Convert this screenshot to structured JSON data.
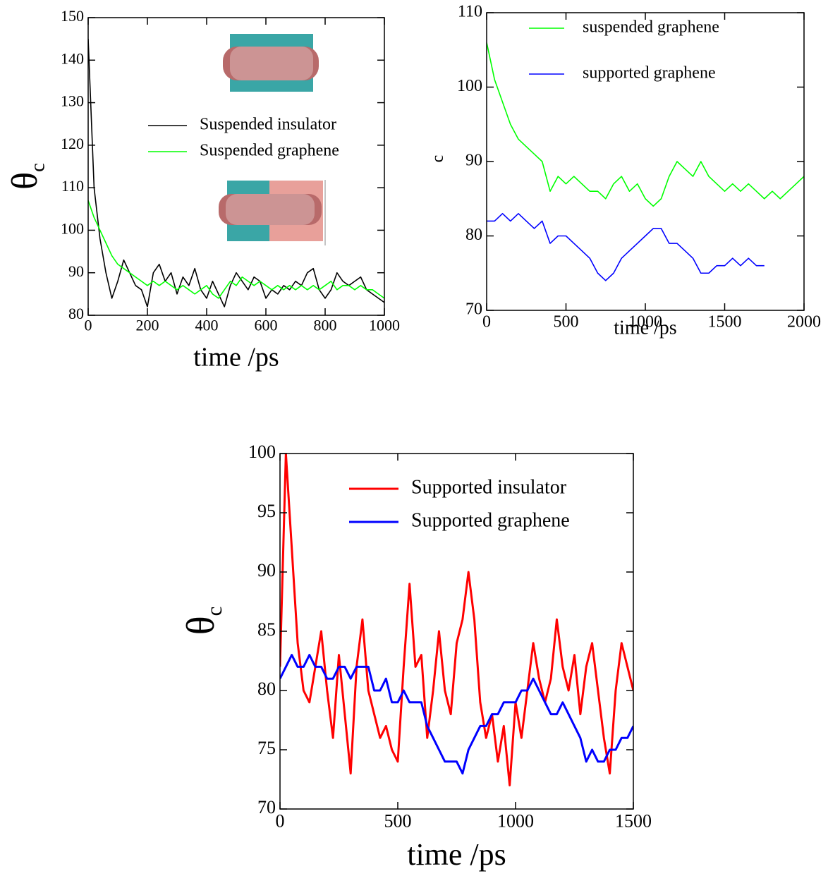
{
  "chart_data": [
    {
      "type": "line",
      "xlabel": "time /ps",
      "ylabel": "θ",
      "ylabel_subscript": "c",
      "xlim": [
        0,
        1000
      ],
      "ylim": [
        80,
        150
      ],
      "xticks": [
        0,
        200,
        400,
        600,
        800,
        1000
      ],
      "yticks": [
        80,
        90,
        100,
        110,
        120,
        130,
        140,
        150
      ],
      "x": [
        0,
        20,
        40,
        60,
        80,
        100,
        120,
        140,
        160,
        180,
        200,
        220,
        240,
        260,
        280,
        300,
        320,
        340,
        360,
        380,
        400,
        420,
        440,
        460,
        480,
        500,
        520,
        540,
        560,
        580,
        600,
        620,
        640,
        660,
        680,
        700,
        720,
        740,
        760,
        780,
        800,
        820,
        840,
        860,
        880,
        900,
        920,
        940,
        960,
        980,
        1000
      ],
      "series": [
        {
          "name": "Suspended insulator",
          "color": "#000000",
          "values": [
            145,
            110,
            98,
            90,
            84,
            88,
            93,
            90,
            87,
            86,
            82,
            90,
            92,
            88,
            90,
            85,
            89,
            87,
            91,
            86,
            84,
            88,
            85,
            82,
            87,
            90,
            88,
            86,
            89,
            88,
            84,
            86,
            85,
            87,
            86,
            88,
            87,
            90,
            91,
            86,
            84,
            86,
            90,
            88,
            87,
            88,
            89,
            86,
            85,
            84,
            83
          ]
        },
        {
          "name": "Suspended graphene",
          "color": "#00ff00",
          "values": [
            107,
            103,
            100,
            97,
            94,
            92,
            91,
            90,
            89,
            88,
            87,
            88,
            87,
            88,
            87,
            86,
            87,
            86,
            85,
            86,
            87,
            85,
            84,
            86,
            88,
            87,
            89,
            88,
            87,
            88,
            87,
            86,
            87,
            86,
            87,
            86,
            87,
            86,
            87,
            86,
            87,
            88,
            86,
            87,
            87,
            86,
            87,
            86,
            86,
            85,
            84
          ]
        }
      ]
    },
    {
      "type": "line",
      "xlabel": "time /ps",
      "ylabel_subscript": "c",
      "xlim": [
        0,
        2000
      ],
      "ylim": [
        70,
        110
      ],
      "xticks": [
        0,
        500,
        1000,
        1500,
        2000
      ],
      "yticks": [
        70,
        80,
        90,
        100,
        110
      ],
      "x": [
        0,
        50,
        100,
        150,
        200,
        250,
        300,
        350,
        400,
        450,
        500,
        550,
        600,
        650,
        700,
        750,
        800,
        850,
        900,
        950,
        1000,
        1050,
        1100,
        1150,
        1200,
        1250,
        1300,
        1350,
        1400,
        1450,
        1500,
        1550,
        1600,
        1650,
        1700,
        1750,
        1800,
        1850,
        1900,
        1950,
        2000
      ],
      "series": [
        {
          "name": "suspended graphene",
          "color": "#00ff00",
          "values": [
            106,
            101,
            98,
            95,
            93,
            92,
            91,
            90,
            86,
            88,
            87,
            88,
            87,
            86,
            86,
            85,
            87,
            88,
            86,
            87,
            85,
            84,
            85,
            88,
            90,
            89,
            88,
            90,
            88,
            87,
            86,
            87,
            86,
            87,
            86,
            85,
            86,
            85,
            86,
            87,
            88
          ]
        },
        {
          "name": "supported graphene",
          "color": "#0000ff",
          "values": [
            82,
            82,
            83,
            82,
            83,
            82,
            81,
            82,
            79,
            80,
            80,
            79,
            78,
            77,
            75,
            74,
            75,
            77,
            78,
            79,
            80,
            81,
            81,
            79,
            79,
            78,
            77,
            75,
            75,
            76,
            76,
            77,
            76,
            77,
            76,
            76,
            null,
            null,
            null,
            null,
            null
          ]
        }
      ]
    },
    {
      "type": "line",
      "xlabel": "time /ps",
      "ylabel": "θ",
      "ylabel_subscript": "c",
      "xlim": [
        0,
        1500
      ],
      "ylim": [
        70,
        100
      ],
      "xticks": [
        0,
        500,
        1000,
        1500
      ],
      "yticks": [
        70,
        75,
        80,
        85,
        90,
        95,
        100
      ],
      "x": [
        0,
        25,
        50,
        75,
        100,
        125,
        150,
        175,
        200,
        225,
        250,
        275,
        300,
        325,
        350,
        375,
        400,
        425,
        450,
        475,
        500,
        525,
        550,
        575,
        600,
        625,
        650,
        675,
        700,
        725,
        750,
        775,
        800,
        825,
        850,
        875,
        900,
        925,
        950,
        975,
        1000,
        1025,
        1050,
        1075,
        1100,
        1125,
        1150,
        1175,
        1200,
        1225,
        1250,
        1275,
        1300,
        1325,
        1350,
        1375,
        1400,
        1425,
        1450,
        1475,
        1500
      ],
      "series": [
        {
          "name": "Supported insulator",
          "color": "#ff0000",
          "values": [
            82,
            100,
            92,
            84,
            80,
            79,
            82,
            85,
            80,
            76,
            83,
            78,
            73,
            82,
            86,
            80,
            78,
            76,
            77,
            75,
            74,
            82,
            89,
            82,
            83,
            76,
            80,
            85,
            80,
            78,
            84,
            86,
            90,
            86,
            79,
            76,
            78,
            74,
            77,
            72,
            79,
            76,
            80,
            84,
            81,
            79,
            81,
            86,
            82,
            80,
            83,
            78,
            82,
            84,
            80,
            76,
            73,
            80,
            84,
            82,
            80
          ]
        },
        {
          "name": "Supported graphene",
          "color": "#0000ff",
          "values": [
            81,
            82,
            83,
            82,
            82,
            83,
            82,
            82,
            81,
            81,
            82,
            82,
            81,
            82,
            82,
            82,
            80,
            80,
            81,
            79,
            79,
            80,
            79,
            79,
            79,
            77,
            76,
            75,
            74,
            74,
            74,
            73,
            75,
            76,
            77,
            77,
            78,
            78,
            79,
            79,
            79,
            80,
            80,
            81,
            80,
            79,
            78,
            78,
            79,
            78,
            77,
            76,
            74,
            75,
            74,
            74,
            75,
            75,
            76,
            76,
            77
          ]
        }
      ]
    }
  ]
}
